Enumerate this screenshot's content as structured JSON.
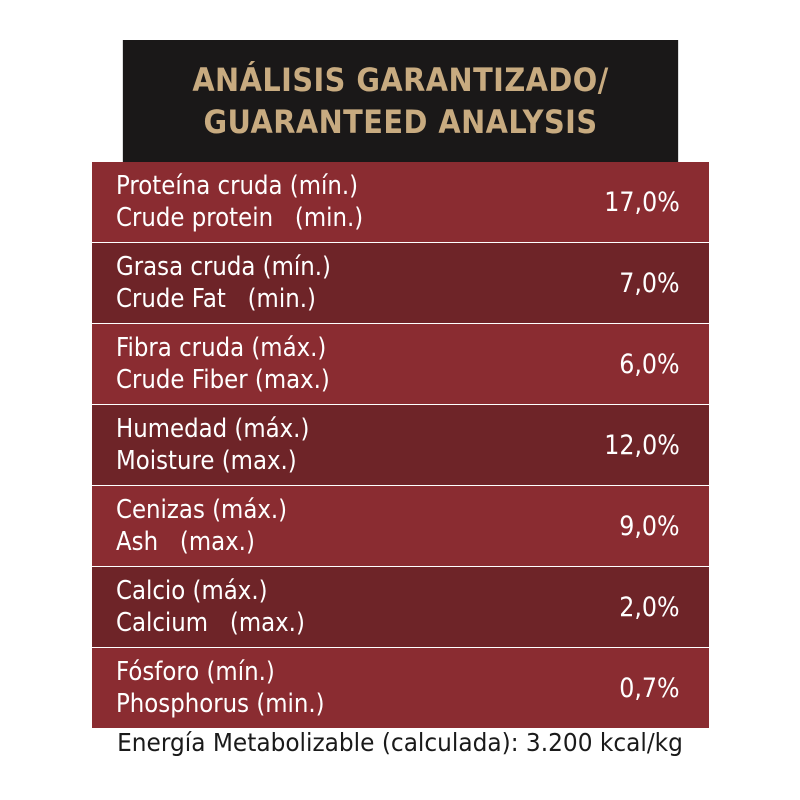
{
  "header": {
    "line1": "ANÁLISIS GARANTIZADO/",
    "line2": "GUARANTEED ANALYSIS"
  },
  "rows": [
    {
      "es": "Proteína cruda (mín.)",
      "en": "Crude protein   (min.)",
      "value": "17,0%"
    },
    {
      "es": "Grasa cruda (mín.)",
      "en": "Crude Fat   (min.)",
      "value": "7,0%"
    },
    {
      "es": "Fibra cruda (máx.)",
      "en": "Crude Fiber (max.)",
      "value": "6,0%"
    },
    {
      "es": "Humedad (máx.)",
      "en": "Moisture (max.)",
      "value": "12,0%"
    },
    {
      "es": "Cenizas (máx.)",
      "en": "Ash   (max.)",
      "value": "9,0%"
    },
    {
      "es": "Calcio (máx.)",
      "en": "Calcium   (max.)",
      "value": "2,0%"
    },
    {
      "es": "Fósforo (mín.)",
      "en": "Phosphorus (min.)",
      "value": "0,7%"
    }
  ],
  "footer": "Energía Metabolizable (calculada): 3.200 kcal/kg",
  "colors": {
    "header_bg": "#1a1818",
    "header_text": "#c8ab80",
    "row_light": "#8a2c31",
    "row_dark": "#6e2428"
  }
}
